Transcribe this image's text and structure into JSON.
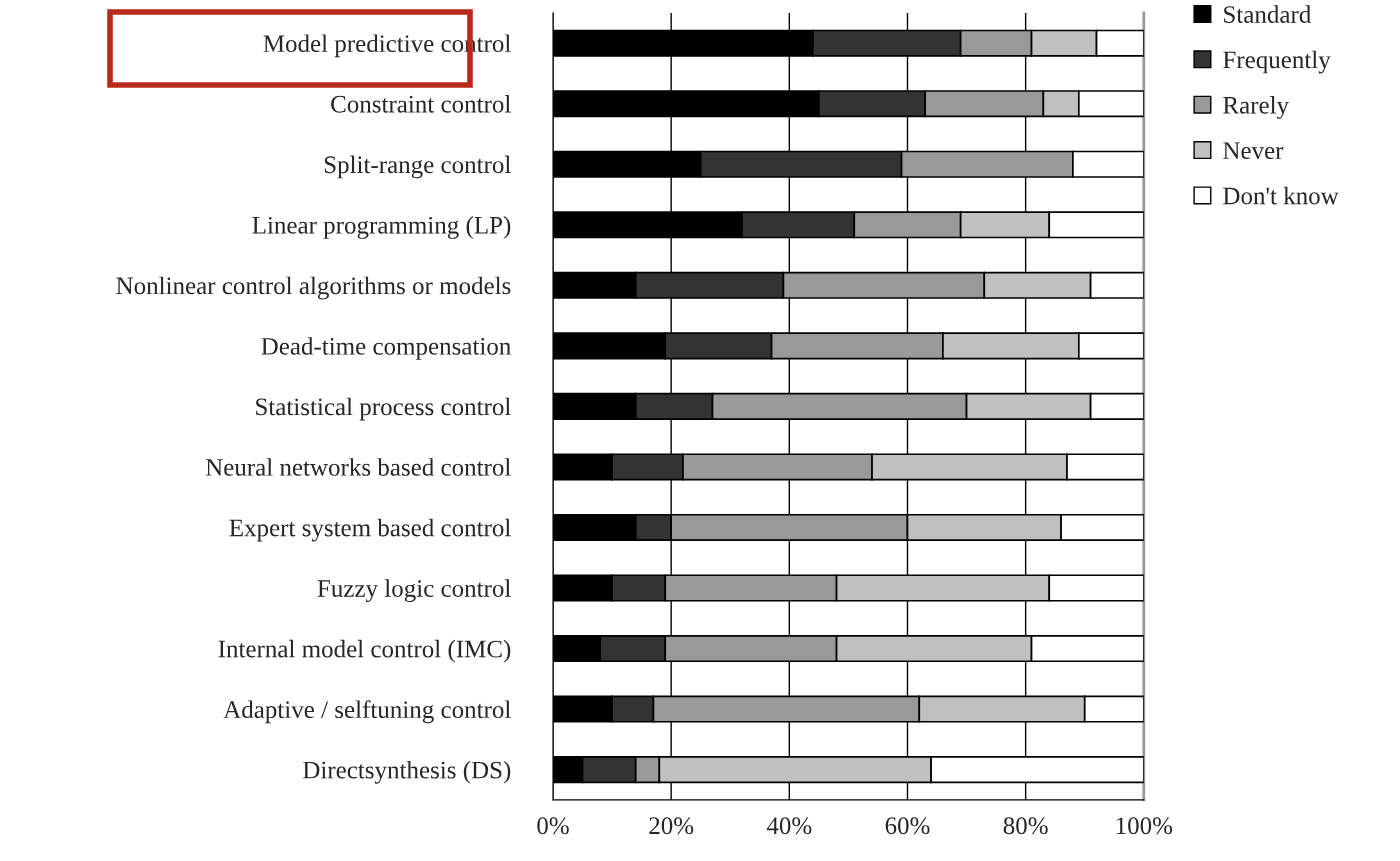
{
  "chart_data": {
    "type": "bar",
    "orientation": "horizontal",
    "stacked": true,
    "categories": [
      "Model predictive control",
      "Constraint control",
      "Split-range control",
      "Linear programming (LP)",
      "Nonlinear control algorithms or models",
      "Dead-time compensation",
      "Statistical process control",
      "Neural networks based control",
      "Expert system based control",
      "Fuzzy logic control",
      "Internal model control (IMC)",
      "Adaptive / selftuning control",
      "Directsynthesis (DS)"
    ],
    "series": [
      {
        "name": "Standard",
        "color": "#000000",
        "values": [
          44,
          45,
          25,
          32,
          14,
          19,
          14,
          10,
          14,
          10,
          8,
          10,
          5
        ]
      },
      {
        "name": "Frequently",
        "color": "#333333",
        "values": [
          25,
          18,
          34,
          19,
          25,
          18,
          13,
          12,
          6,
          9,
          11,
          7,
          9
        ]
      },
      {
        "name": "Rarely",
        "color": "#999999",
        "values": [
          12,
          20,
          29,
          18,
          34,
          29,
          43,
          32,
          40,
          29,
          29,
          45,
          4
        ]
      },
      {
        "name": "Never",
        "color": "#c0c0c0",
        "values": [
          11,
          6,
          0,
          15,
          18,
          23,
          21,
          33,
          26,
          36,
          33,
          28,
          46
        ]
      },
      {
        "name": "Don't know",
        "color": "#ffffff",
        "values": [
          8,
          11,
          12,
          16,
          9,
          11,
          9,
          13,
          14,
          16,
          19,
          10,
          36
        ]
      }
    ],
    "xlim": [
      0,
      100
    ],
    "xticks": [
      {
        "value": 0,
        "label": "0%"
      },
      {
        "value": 20,
        "label": "20%"
      },
      {
        "value": 40,
        "label": "40%"
      },
      {
        "value": 60,
        "label": "60%"
      },
      {
        "value": 80,
        "label": "80%"
      },
      {
        "value": 100,
        "label": "100%"
      }
    ],
    "grid": "x",
    "legend": "right"
  }
}
